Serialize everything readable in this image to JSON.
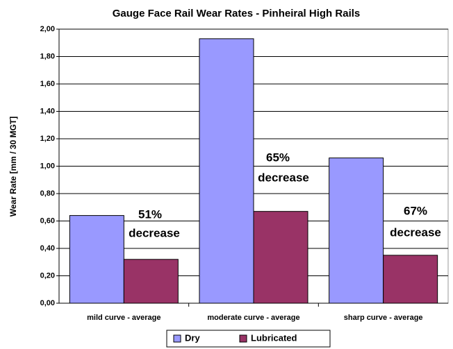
{
  "chart_data": {
    "type": "bar",
    "title": "Gauge Face Rail Wear Rates - Pinheiral High Rails",
    "y_label": "Wear Rate [mm / 30 MGT]",
    "categories": [
      "mild curve - average",
      "moderate curve - average",
      "sharp curve - average"
    ],
    "series": [
      {
        "name": "Dry",
        "color": "#9999ff",
        "values": [
          0.64,
          1.93,
          1.06
        ]
      },
      {
        "name": "Lubricated",
        "color": "#993366",
        "values": [
          0.32,
          0.67,
          0.35
        ]
      }
    ],
    "ylim": [
      0,
      2
    ],
    "yticks": [
      {
        "value": 0,
        "label": "0,00"
      },
      {
        "value": 0.2,
        "label": "0,20"
      },
      {
        "value": 0.4,
        "label": "0,40"
      },
      {
        "value": 0.6,
        "label": "0,60"
      },
      {
        "value": 0.8,
        "label": "0,80"
      },
      {
        "value": 1.0,
        "label": "1,00"
      },
      {
        "value": 1.2,
        "label": "1,20"
      },
      {
        "value": 1.4,
        "label": "1,40"
      },
      {
        "value": 1.6,
        "label": "1,60"
      },
      {
        "value": 1.8,
        "label": "1,80"
      },
      {
        "value": 2.0,
        "label": "2,00"
      }
    ],
    "grid": true,
    "legend": "bottom",
    "annotations": [
      {
        "lines": [
          "51%",
          "decrease"
        ]
      },
      {
        "lines": [
          "65%",
          "decrease"
        ]
      },
      {
        "lines": [
          "67%",
          "decrease"
        ]
      }
    ]
  }
}
